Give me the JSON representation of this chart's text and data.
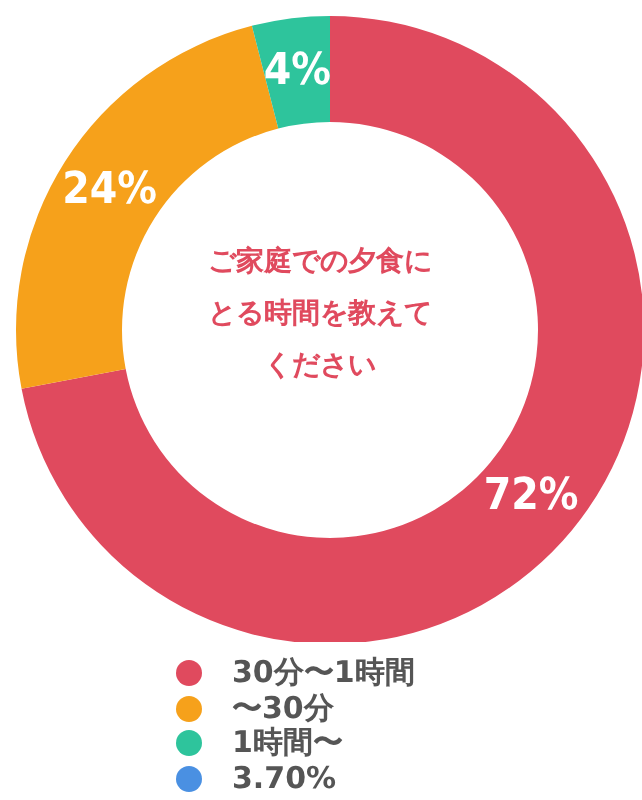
{
  "chart_data": {
    "type": "donut",
    "title": "ご家庭での夕食にとる時間を教えてください",
    "categories": [
      "30分〜1時間",
      "〜30分",
      "1時間〜",
      "3.70%"
    ],
    "values": [
      72,
      24,
      4,
      0
    ],
    "colors": [
      "#e04a5e",
      "#f6a11b",
      "#2ec49c",
      "#4a90e2"
    ],
    "value_labels": [
      "72%",
      "24%",
      "4%",
      null
    ],
    "legend": "bottom"
  }
}
